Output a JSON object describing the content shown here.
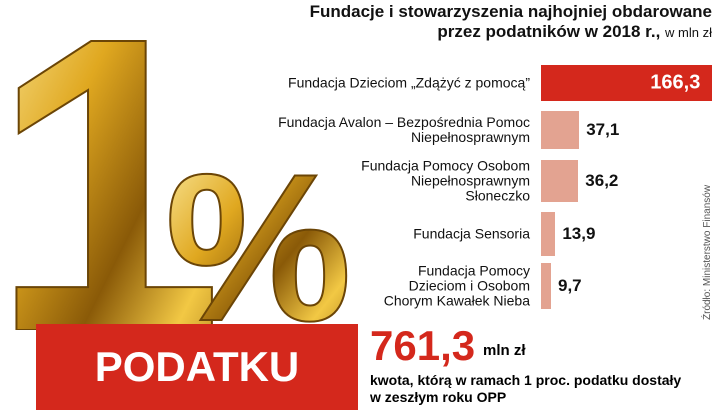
{
  "chart_data": {
    "type": "bar",
    "orientation": "horizontal",
    "title": "Fundacje i stowarzyszenia najhojniej obdarowane\nprzez podatników w 2018 r.,",
    "unit": "w mln zł",
    "categories": [
      "Fundacja Dzieciom „Zdążyć z pomocą”",
      "Fundacja Avalon – Bezpośrednia Pomoc\nNiepełnosprawnym",
      "Fundacja Pomocy Osobom\nNiepełnosprawnym\nSłoneczko",
      "Fundacja Sensoria",
      "Fundacja Pomocy\nDzieciom i Osobom\nChorym Kawałek Nieba"
    ],
    "values": [
      166.3,
      37.1,
      36.2,
      13.9,
      9.7
    ],
    "value_labels": [
      "166,3",
      "37,1",
      "36,2",
      "13,9",
      "9,7"
    ],
    "colors": [
      "#d4281c",
      "#e3a391",
      "#e3a391",
      "#e3a391",
      "#e3a391"
    ],
    "source": "Źródło: Ministerstwo Finansów",
    "sign_number": "1",
    "sign_symbol": "%",
    "banner": "PODATKU",
    "total": "761,3",
    "total_unit": "mln zł",
    "caption": "kwota, którą w ramach 1 proc. podatku dostały\nw zeszłym roku OPP"
  }
}
